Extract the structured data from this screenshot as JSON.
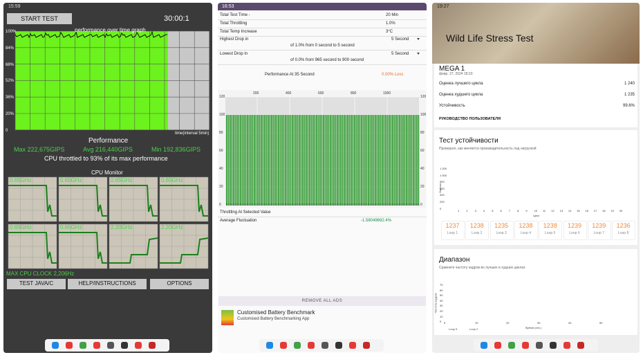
{
  "screen1": {
    "status_time": "15:59",
    "start_button": "START TEST",
    "timer": "30:00:1",
    "graph_title": "performance over time graph",
    "y_labels": [
      "100%",
      "84%",
      "68%",
      "52%",
      "36%",
      "20%",
      "0"
    ],
    "x_label": "time(interval 5min)",
    "performance": {
      "title": "Performance",
      "max": "Max 222,675GIPS",
      "avg": "Avg 216,440GIPS",
      "min": "Min 192,836GIPS",
      "throttle": "CPU throttled to 93% of its max performance"
    },
    "cpu_monitor": {
      "title": "CPU Monitor",
      "cores": [
        "0.65GHz",
        "0.65GHz",
        "0.65GHz",
        "0.65GHz",
        "0.65GHz",
        "0.65GHz",
        "2.20GHz",
        "2.20GHz"
      ],
      "max_clock": "MAX CPU CLOCK 2,206Hz"
    },
    "buttons": [
      "TEST JAVA/C",
      "HELP/INSTRUCTIONS",
      "OPTIONS"
    ]
  },
  "screen2": {
    "status_time": "16:53",
    "summary": [
      [
        "Total Test Time -",
        "20 Min"
      ],
      [
        "Total Throttling",
        "1.0%"
      ],
      [
        "Total Temp Increase",
        "3°C"
      ]
    ],
    "highest_drop": {
      "label": "Highest Drop in",
      "select": "5 Second",
      "detail": "of 1.0% from 0 second to  5 second"
    },
    "lowest_drop": {
      "label": "Lowest Drop in",
      "select": "5 Second",
      "detail": "of 0.0% from 965 second to  900 second"
    },
    "perf_at": {
      "label": "Performance At 35 Second",
      "value": "0.00% Loss"
    },
    "chart": {
      "top_ticks": [
        "200",
        "400",
        "600",
        "800",
        "1000"
      ],
      "left_ticks": [
        "120",
        "100",
        "80",
        "60",
        "40",
        "20",
        "0"
      ],
      "right_ticks": [
        "120",
        "100",
        "80",
        "60",
        "40",
        "20",
        "0"
      ]
    },
    "throttling_label": "Throttling At Selected Value",
    "avg_fluct": {
      "label": "Average Fluctuation",
      "value": "-1.58049692.4%"
    },
    "remove_ads": "REMOVE ALL ADS",
    "ad": {
      "title": "Customised Battery Benchmark",
      "subtitle": "Customised Battery Benchmarking App"
    }
  },
  "screen3": {
    "status_time": "19:27",
    "title": "Wild Life Stress Test",
    "device": "MEGA 1",
    "date": "февр. 27, 2024 18:33",
    "rows": [
      [
        "Оценка лучшего цикла",
        "1 240"
      ],
      [
        "Оценка худшего цикла",
        "1 235"
      ],
      [
        "Устойчивость",
        "99.6%"
      ]
    ],
    "guide": "РУКОВОДСТВО ПОЛЬЗОВАТЕЛЯ",
    "stability": {
      "title": "Тест устойчивости",
      "subtitle": "Проверьте, как меняется производительность под нагрузкой",
      "y_axis": "Оценка",
      "y_ticks": [
        "1 200",
        "1 000",
        "800",
        "600",
        "400",
        "200",
        "0"
      ],
      "x_axis": "Цикл",
      "x_ticks": [
        "1",
        "2",
        "3",
        "4",
        "5",
        "6",
        "7",
        "8",
        "9",
        "10",
        "11",
        "12",
        "13",
        "14",
        "15",
        "16",
        "17",
        "18",
        "19",
        "20"
      ],
      "loops": [
        {
          "score": "1237",
          "label": "Loop 1"
        },
        {
          "score": "1238",
          "label": "Loop 2"
        },
        {
          "score": "1235",
          "label": "Loop 3"
        },
        {
          "score": "1238",
          "label": "Loop 4"
        },
        {
          "score": "1238",
          "label": "Loop 5"
        },
        {
          "score": "1239",
          "label": "Loop 6"
        },
        {
          "score": "1239",
          "label": "Loop 7"
        },
        {
          "score": "1236",
          "label": "Loop 8"
        }
      ]
    },
    "range": {
      "title": "Диапазон",
      "subtitle": "Сравните частоту кадров во лучших и худших циклах",
      "y_axis": "Частота кадров",
      "y_ticks": [
        "70",
        "60",
        "50",
        "40",
        "30",
        "20",
        "10",
        "0"
      ],
      "x_axis": "Время (сек.)",
      "x_ticks": [
        "0",
        "10",
        "20",
        "30",
        "40",
        "50"
      ],
      "legend": [
        "Loop 9",
        "Loop 2"
      ]
    }
  }
}
